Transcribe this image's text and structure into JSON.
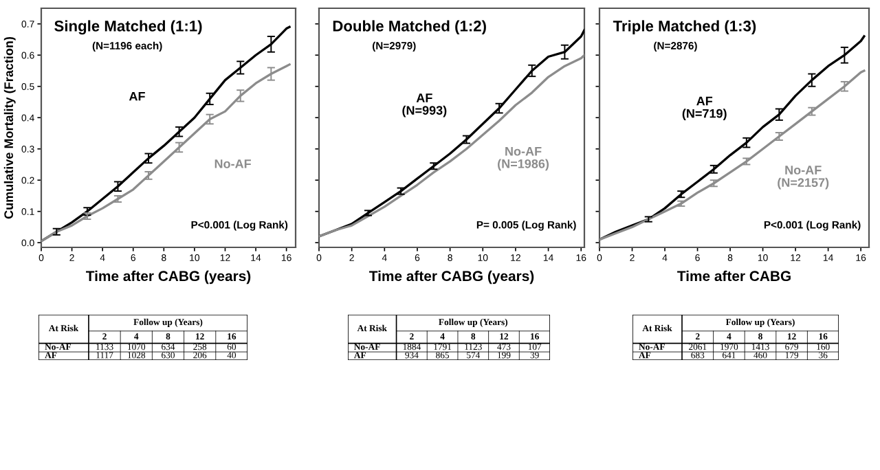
{
  "chart_data": [
    {
      "type": "line",
      "title": "Single Matched (1:1)",
      "subtitle": "(N=1196 each)",
      "xlabel": "Time after CABG (years)",
      "ylabel": "Cumulative Mortality (Fraction)",
      "xlim": [
        0,
        16.6
      ],
      "ylim": [
        -0.015,
        0.75
      ],
      "xticks": [
        0,
        2,
        4,
        6,
        8,
        10,
        12,
        14,
        16
      ],
      "yticks": [
        {
          "value": 0,
          "label": "0.0"
        },
        0.1,
        0.2,
        0.3,
        0.4,
        0.5,
        0.6,
        0.7
      ],
      "grid": false,
      "legend": false,
      "series": [
        {
          "name": "AF",
          "color": "#000000",
          "x": [
            0,
            1,
            2,
            3,
            4,
            5,
            6,
            7,
            8,
            9,
            10,
            11,
            12,
            13,
            14,
            15,
            16,
            16.2
          ],
          "values": [
            0.005,
            0.035,
            0.065,
            0.1,
            0.14,
            0.18,
            0.225,
            0.27,
            0.31,
            0.355,
            0.4,
            0.46,
            0.52,
            0.56,
            0.6,
            0.635,
            0.685,
            0.69
          ],
          "errors": [
            null,
            0.01,
            null,
            0.012,
            null,
            0.015,
            null,
            0.015,
            null,
            0.015,
            null,
            0.018,
            null,
            0.02,
            null,
            0.025,
            null,
            null
          ]
        },
        {
          "name": "No-AF",
          "color": "#8c8c8c",
          "x": [
            0,
            1,
            2,
            3,
            4,
            5,
            6,
            7,
            8,
            9,
            10,
            11,
            12,
            13,
            14,
            15,
            16,
            16.2
          ],
          "values": [
            0.005,
            0.035,
            0.055,
            0.085,
            0.11,
            0.14,
            0.17,
            0.215,
            0.26,
            0.305,
            0.35,
            0.395,
            0.42,
            0.47,
            0.51,
            0.54,
            0.565,
            0.57
          ],
          "errors": [
            null,
            null,
            null,
            0.01,
            null,
            0.01,
            null,
            0.012,
            null,
            0.015,
            null,
            0.015,
            null,
            0.018,
            null,
            0.02,
            null,
            null
          ]
        }
      ],
      "annotations": [
        "P<0.001 (Log Rank)",
        "At Risk",
        "Follow up (Years)",
        "2",
        "4",
        "8",
        "12",
        "16",
        "No-AF",
        "1133",
        "1070",
        "634",
        "258",
        "60",
        "AF",
        "1117",
        "1028",
        "630",
        "206",
        "40"
      ]
    },
    {
      "type": "line",
      "title": "Double Matched (1:2)",
      "subtitle": "(N=2979)",
      "xlabel": "Time after CABG (years)",
      "xlim": [
        0,
        16.2
      ],
      "ylim": [
        -0.015,
        0.75
      ],
      "xticks": [
        0,
        2,
        4,
        6,
        8,
        10,
        12,
        14,
        16
      ],
      "yticks": [
        0,
        0.1,
        0.2,
        0.3,
        0.4,
        0.5,
        0.6,
        0.7
      ],
      "tick_labels": "x",
      "grid": false,
      "legend": false,
      "series": [
        {
          "name": "AF\n(N=993)",
          "color": "#000000",
          "x": [
            0,
            1,
            2,
            3,
            4,
            5,
            6,
            7,
            8,
            9,
            10,
            11,
            12,
            13,
            14,
            15,
            16,
            16.2
          ],
          "values": [
            0.02,
            0.04,
            0.06,
            0.095,
            0.13,
            0.165,
            0.205,
            0.245,
            0.285,
            0.33,
            0.38,
            0.43,
            0.49,
            0.55,
            0.595,
            0.61,
            0.66,
            0.68
          ],
          "errors": [
            null,
            null,
            null,
            0.008,
            null,
            0.01,
            null,
            0.01,
            null,
            0.012,
            null,
            0.015,
            null,
            0.018,
            null,
            0.022,
            null,
            null
          ]
        },
        {
          "name": "No-AF\n(N=1986)",
          "color": "#8c8c8c",
          "x": [
            0,
            1,
            2,
            3,
            4,
            5,
            6,
            7,
            8,
            9,
            10,
            11,
            12,
            13,
            14,
            15,
            16,
            16.2
          ],
          "values": [
            0.02,
            0.04,
            0.055,
            0.085,
            0.115,
            0.15,
            0.185,
            0.225,
            0.26,
            0.3,
            0.345,
            0.39,
            0.44,
            0.48,
            0.53,
            0.565,
            0.59,
            0.6
          ]
        }
      ],
      "annotations": [
        "P= 0.005 (Log Rank)",
        "At Risk",
        "Follow up (Years)",
        "2",
        "4",
        "8",
        "12",
        "16",
        "No-AF",
        "1884",
        "1791",
        "1123",
        "473",
        "107",
        "AF",
        "934",
        "865",
        "574",
        "199",
        "39"
      ]
    },
    {
      "type": "line",
      "title": "Triple Matched (1:3)",
      "subtitle": "(N=2876)",
      "xlabel": "Time after CABG",
      "xlim": [
        0,
        16.5
      ],
      "ylim": [
        -0.015,
        0.75
      ],
      "xticks": [
        0,
        2,
        4,
        6,
        8,
        10,
        12,
        14,
        16
      ],
      "yticks": [
        0,
        0.1,
        0.2,
        0.3,
        0.4,
        0.5,
        0.6,
        0.7
      ],
      "tick_labels": "x",
      "grid": false,
      "legend": false,
      "series": [
        {
          "name": "AF\n(N=719)",
          "color": "#000000",
          "x": [
            0,
            1,
            2,
            3,
            4,
            5,
            6,
            7,
            8,
            9,
            10,
            11,
            12,
            13,
            14,
            15,
            16,
            16.2
          ],
          "values": [
            0.01,
            0.035,
            0.055,
            0.075,
            0.11,
            0.155,
            0.195,
            0.235,
            0.28,
            0.32,
            0.37,
            0.41,
            0.47,
            0.52,
            0.565,
            0.6,
            0.645,
            0.66
          ],
          "errors": [
            null,
            null,
            null,
            0.008,
            null,
            0.01,
            null,
            0.012,
            null,
            0.015,
            null,
            0.018,
            null,
            0.02,
            null,
            0.025,
            null,
            null
          ]
        },
        {
          "name": "No-AF\n(N=2157)",
          "color": "#8c8c8c",
          "x": [
            0,
            1,
            2,
            3,
            4,
            5,
            6,
            7,
            8,
            9,
            10,
            11,
            12,
            13,
            14,
            15,
            16,
            16.2
          ],
          "values": [
            0.01,
            0.03,
            0.05,
            0.075,
            0.1,
            0.125,
            0.16,
            0.19,
            0.225,
            0.26,
            0.3,
            0.34,
            0.38,
            0.42,
            0.46,
            0.5,
            0.545,
            0.55
          ],
          "errors": [
            null,
            null,
            null,
            null,
            null,
            0.008,
            null,
            0.01,
            null,
            0.01,
            null,
            0.012,
            null,
            0.012,
            null,
            0.015,
            null,
            null
          ]
        }
      ],
      "annotations": [
        "P<0.001 (Log Rank)",
        "At Risk",
        "Follow up (Years)",
        "2",
        "4",
        "8",
        "12",
        "16",
        "No-AF",
        "2061",
        "1970",
        "1413",
        "679",
        "160",
        "AF",
        "683",
        "641",
        "460",
        "179",
        "36"
      ]
    }
  ]
}
